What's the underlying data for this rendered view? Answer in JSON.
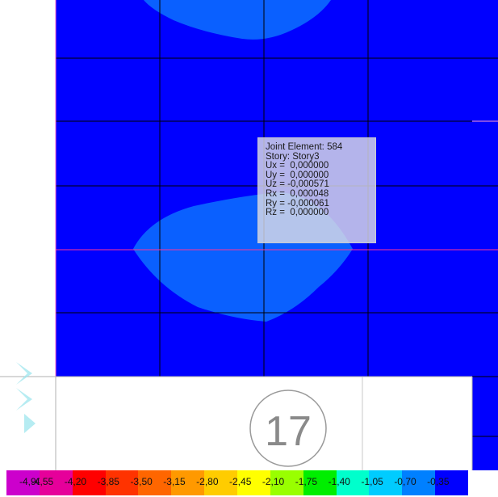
{
  "tooltip": {
    "joint": "Joint Element: 584",
    "story": "Story: Story3",
    "ux": "Ux =  0,000000",
    "uy": "Uy =  0,000000",
    "uz": "Uz = -0,000571",
    "rx": "Rx =  0,000048",
    "ry": "Ry = -0,000061",
    "rz": "Rz =  0,000000"
  },
  "grid_marker": {
    "label": "17"
  },
  "legend": {
    "items": [
      {
        "label": "-4,90",
        "color": "#cc00cc"
      },
      {
        "label": "-4,55",
        "color": "#e6009a"
      },
      {
        "label": "-4,20",
        "color": "#ff0000"
      },
      {
        "label": "-3,85",
        "color": "#ff3300"
      },
      {
        "label": "-3,50",
        "color": "#ff6600"
      },
      {
        "label": "-3,15",
        "color": "#ff9900"
      },
      {
        "label": "-2,80",
        "color": "#ffcc00"
      },
      {
        "label": "-2,45",
        "color": "#ffff00"
      },
      {
        "label": "-2,10",
        "color": "#99ff00"
      },
      {
        "label": "-1,75",
        "color": "#00ee00"
      },
      {
        "label": "-1,40",
        "color": "#00ffcc"
      },
      {
        "label": "-1,05",
        "color": "#00ccff"
      },
      {
        "label": "-0,70",
        "color": "#0080ff"
      },
      {
        "label": "-0,35",
        "color": "#0000ff"
      }
    ]
  },
  "colors": {
    "deep_blue": "#0000ff",
    "light_blue": "#0a60ff",
    "grid_line": "#000000",
    "highlight_line": "#ff3399"
  }
}
